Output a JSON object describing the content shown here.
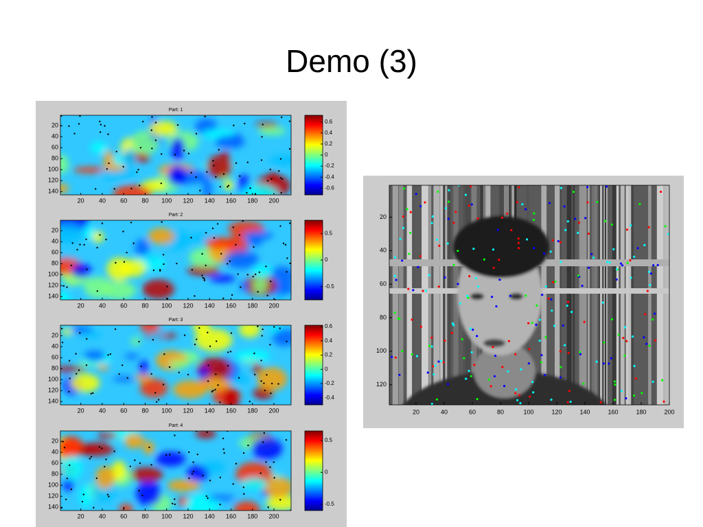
{
  "title": "Demo (3)",
  "panels": [
    {
      "title": "Part: 1",
      "xlim": [
        1,
        216
      ],
      "ylim": [
        1,
        146
      ],
      "xticks": [
        20,
        40,
        60,
        80,
        100,
        120,
        140,
        160,
        180,
        200
      ],
      "yticks": [
        20,
        40,
        60,
        80,
        100,
        120,
        140
      ],
      "clim": [
        -0.72,
        0.72
      ],
      "colorbar_ticks": [
        0.6,
        0.4,
        0.2,
        0,
        -0.2,
        -0.4,
        -0.6
      ]
    },
    {
      "title": "Part: 2",
      "xlim": [
        1,
        216
      ],
      "ylim": [
        1,
        146
      ],
      "xticks": [
        20,
        40,
        60,
        80,
        100,
        120,
        140,
        160,
        180,
        200
      ],
      "yticks": [
        20,
        40,
        60,
        80,
        100,
        120,
        140
      ],
      "clim": [
        -0.75,
        0.75
      ],
      "colorbar_ticks": [
        0.5,
        0,
        -0.5
      ]
    },
    {
      "title": "Part: 3",
      "xlim": [
        1,
        216
      ],
      "ylim": [
        1,
        146
      ],
      "xticks": [
        20,
        40,
        60,
        80,
        100,
        120,
        140,
        160,
        180,
        200
      ],
      "yticks": [
        20,
        40,
        60,
        80,
        100,
        120,
        140
      ],
      "clim": [
        -0.5,
        0.62
      ],
      "colorbar_ticks": [
        0.6,
        0.4,
        0.2,
        0,
        -0.2,
        -0.4
      ]
    },
    {
      "title": "Part: 4",
      "xlim": [
        1,
        216
      ],
      "ylim": [
        1,
        146
      ],
      "xticks": [
        20,
        40,
        60,
        80,
        100,
        120,
        140,
        160,
        180,
        200
      ],
      "yticks": [
        20,
        40,
        60,
        80,
        100,
        120,
        140
      ],
      "clim": [
        -0.6,
        0.65
      ],
      "colorbar_ticks": [
        0.5,
        0,
        -0.5
      ]
    }
  ],
  "photo": {
    "xlim": [
      1,
      200
    ],
    "ylim": [
      1,
      132
    ],
    "xticks": [
      20,
      40,
      60,
      80,
      100,
      120,
      140,
      160,
      180,
      200
    ],
    "yticks": [
      20,
      40,
      60,
      80,
      100,
      120
    ]
  }
}
